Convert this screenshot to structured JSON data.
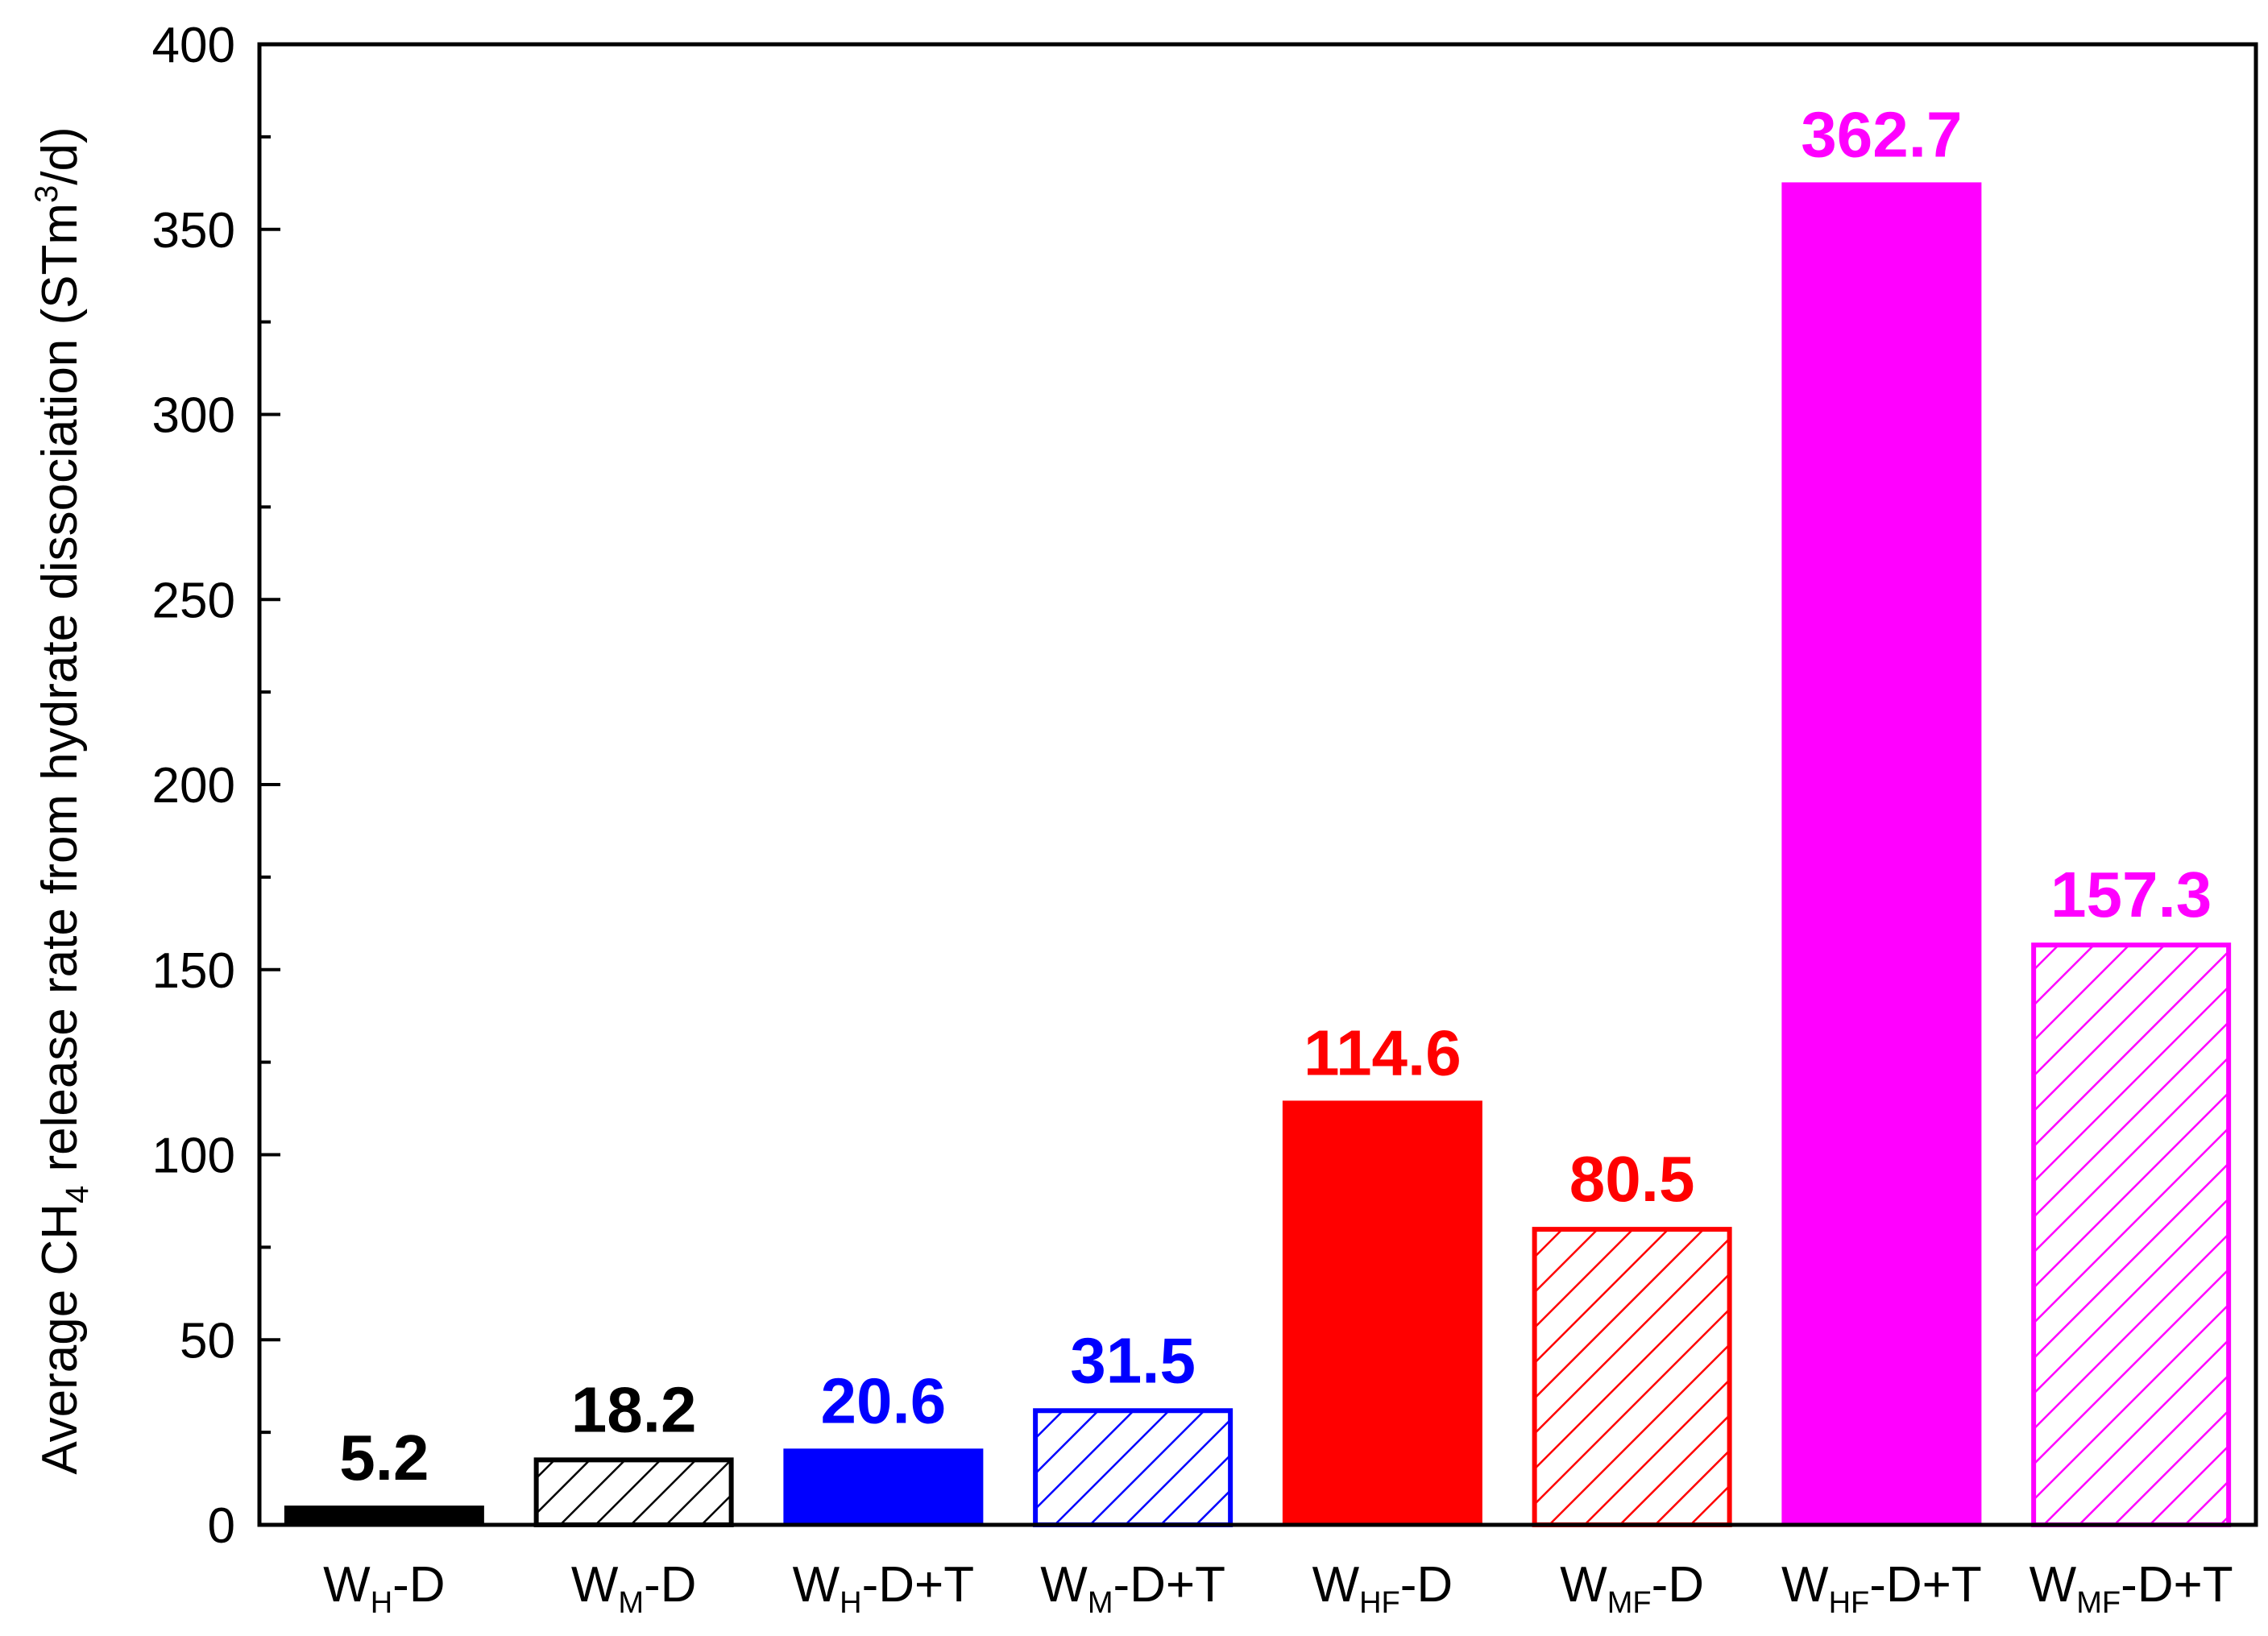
{
  "chart_data": {
    "type": "bar",
    "categories": [
      {
        "base": "W",
        "sub": "H",
        "suffix": "-D"
      },
      {
        "base": "W",
        "sub": "M",
        "suffix": "-D"
      },
      {
        "base": "W",
        "sub": "H",
        "suffix": "-D+T"
      },
      {
        "base": "W",
        "sub": "M",
        "suffix": "-D+T"
      },
      {
        "base": "W",
        "sub": "HF",
        "suffix": "-D"
      },
      {
        "base": "W",
        "sub": "MF",
        "suffix": "-D"
      },
      {
        "base": "W",
        "sub": "HF",
        "suffix": "-D+T"
      },
      {
        "base": "W",
        "sub": "MF",
        "suffix": "-D+T"
      }
    ],
    "values": [
      5.2,
      18.2,
      20.6,
      31.5,
      114.6,
      80.5,
      362.7,
      157.3
    ],
    "data_labels": [
      "5.2",
      "18.2",
      "20.6",
      "31.5",
      "114.6",
      "80.5",
      "362.7",
      "157.3"
    ],
    "bar_colors": [
      "#000000",
      "#000000",
      "#0000ff",
      "#0000ff",
      "#ff0000",
      "#ff0000",
      "#ff00ff",
      "#ff00ff"
    ],
    "bar_fill": [
      "solid",
      "hatched",
      "solid",
      "hatched",
      "solid",
      "hatched",
      "solid",
      "hatched"
    ],
    "ylabel": {
      "pre": "Average CH",
      "sub": "4",
      "mid": " release rate from hydrate dissociation (STm",
      "sup": "3",
      "post": "/d)"
    },
    "xlabel": "",
    "ylim": [
      0,
      400
    ],
    "yticks": [
      "0",
      "50",
      "100",
      "150",
      "200",
      "250",
      "300",
      "350",
      "400"
    ],
    "grid": false,
    "legend": "none"
  }
}
